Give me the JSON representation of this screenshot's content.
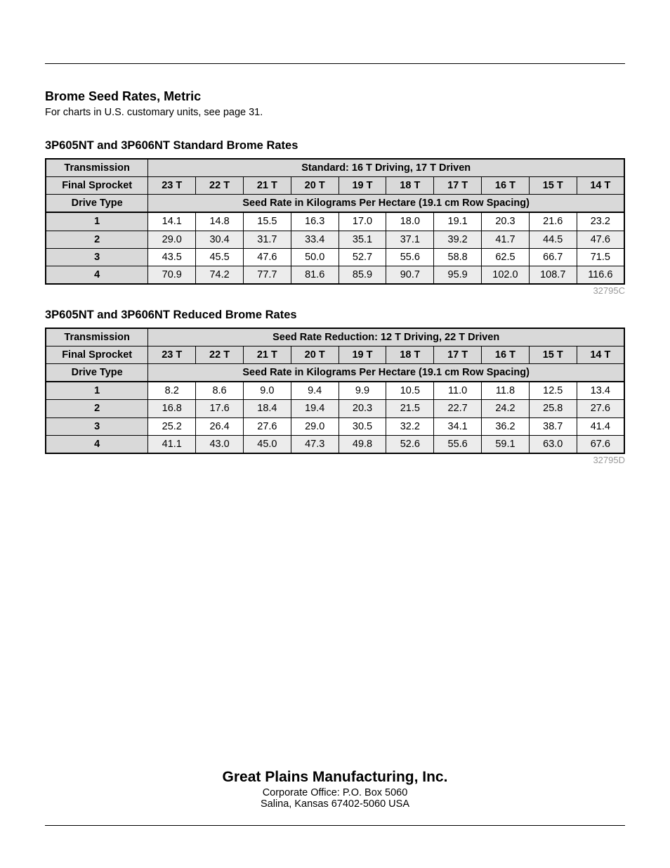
{
  "heading": "Brome Seed Rates, Metric",
  "subnote": "For charts in U.S. customary units, see page 31.",
  "col_labels": {
    "transmission": "Transmission",
    "final_sprocket": "Final Sprocket",
    "drive_type": "Drive Type"
  },
  "sprocket_cols": [
    "23 T",
    "22 T",
    "21 T",
    "20 T",
    "19 T",
    "18 T",
    "17 T",
    "16 T",
    "15 T",
    "14 T"
  ],
  "seed_rate_span": "Seed Rate in Kilograms Per Hectare (19.1 cm Row Spacing)",
  "tables": [
    {
      "title": "3P605NT and 3P606NT Standard Brome Rates",
      "transmission_span": "Standard: 16 T Driving, 17 T Driven",
      "rows": [
        {
          "drive": "1",
          "vals": [
            "14.1",
            "14.8",
            "15.5",
            "16.3",
            "17.0",
            "18.0",
            "19.1",
            "20.3",
            "21.6",
            "23.2"
          ]
        },
        {
          "drive": "2",
          "vals": [
            "29.0",
            "30.4",
            "31.7",
            "33.4",
            "35.1",
            "37.1",
            "39.2",
            "41.7",
            "44.5",
            "47.6"
          ]
        },
        {
          "drive": "3",
          "vals": [
            "43.5",
            "45.5",
            "47.6",
            "50.0",
            "52.7",
            "55.6",
            "58.8",
            "62.5",
            "66.7",
            "71.5"
          ]
        },
        {
          "drive": "4",
          "vals": [
            "70.9",
            "74.2",
            "77.7",
            "81.6",
            "85.9",
            "90.7",
            "95.9",
            "102.0",
            "108.7",
            "116.6"
          ]
        }
      ],
      "code": "32795C"
    },
    {
      "title": "3P605NT and 3P606NT Reduced Brome Rates",
      "transmission_span": "Seed Rate Reduction: 12 T Driving, 22 T Driven",
      "rows": [
        {
          "drive": "1",
          "vals": [
            "8.2",
            "8.6",
            "9.0",
            "9.4",
            "9.9",
            "10.5",
            "11.0",
            "11.8",
            "12.5",
            "13.4"
          ]
        },
        {
          "drive": "2",
          "vals": [
            "16.8",
            "17.6",
            "18.4",
            "19.4",
            "20.3",
            "21.5",
            "22.7",
            "24.2",
            "25.8",
            "27.6"
          ]
        },
        {
          "drive": "3",
          "vals": [
            "25.2",
            "26.4",
            "27.6",
            "29.0",
            "30.5",
            "32.2",
            "34.1",
            "36.2",
            "38.7",
            "41.4"
          ]
        },
        {
          "drive": "4",
          "vals": [
            "41.1",
            "43.0",
            "45.0",
            "47.3",
            "49.8",
            "52.6",
            "55.6",
            "59.1",
            "63.0",
            "67.6"
          ]
        }
      ],
      "code": "32795D"
    }
  ],
  "footer": {
    "company": "Great Plains Manufacturing, Inc.",
    "addr1": "Corporate Office: P.O. Box 5060",
    "addr2": "Salina, Kansas 67402-5060 USA"
  }
}
